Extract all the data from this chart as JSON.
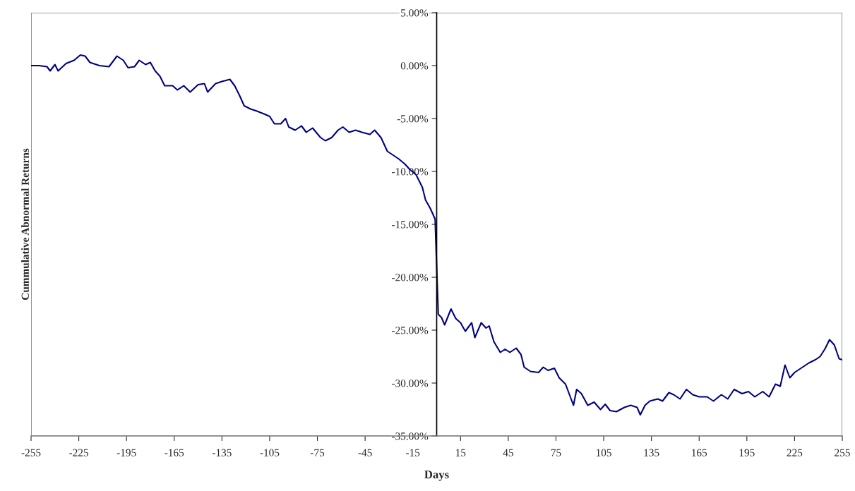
{
  "chart_data": {
    "type": "line",
    "xlabel": "Days",
    "ylabel": "Cummulative Abnormal Returns",
    "xlim": [
      -255,
      255
    ],
    "xticks": [
      -255,
      -225,
      -195,
      -165,
      -135,
      -105,
      -75,
      -45,
      -15,
      15,
      45,
      75,
      105,
      135,
      165,
      195,
      225,
      255
    ],
    "ylim": [
      -35,
      5
    ],
    "yticks": [
      {
        "value": 5,
        "label": "5.00%"
      },
      {
        "value": 0,
        "label": "0.00%"
      },
      {
        "value": -5,
        "label": "-5.00%"
      },
      {
        "value": -10,
        "label": "-10.00%"
      },
      {
        "value": -15,
        "label": "-15.00%"
      },
      {
        "value": -20,
        "label": "-20.00%"
      },
      {
        "value": -25,
        "label": "-25.00%"
      },
      {
        "value": -30,
        "label": "-30.00%"
      },
      {
        "value": -35,
        "label": "-35.00%"
      }
    ],
    "grid": false,
    "legend": false,
    "marker": "none",
    "line_style": "solid",
    "series": [
      {
        "color": "#000080",
        "x": [
          -255,
          -250,
          -245,
          -243,
          -240,
          -238,
          -233,
          -228,
          -224,
          -221,
          -218,
          -212,
          -206,
          -201,
          -197,
          -194,
          -190,
          -187,
          -183,
          -180,
          -177,
          -174,
          -171,
          -166,
          -163,
          -159,
          -155,
          -150,
          -146,
          -144,
          -139,
          -135,
          -130,
          -127,
          -124,
          -121,
          -117,
          -113,
          -108,
          -105,
          -102,
          -98,
          -95,
          -93,
          -89,
          -85,
          -82,
          -78,
          -73,
          -70,
          -66,
          -62,
          -59,
          -55,
          -51,
          -47,
          -42,
          -39,
          -35,
          -31,
          -27,
          -24,
          -20,
          -17,
          -13,
          -9,
          -7,
          -4,
          -1,
          1,
          3,
          5,
          9,
          12,
          15,
          18,
          22,
          24,
          28,
          31,
          33,
          36,
          40,
          43,
          46,
          50,
          53,
          55,
          59,
          64,
          67,
          70,
          74,
          77,
          81,
          84,
          86,
          88,
          91,
          95,
          99,
          103,
          106,
          109,
          113,
          118,
          122,
          126,
          128,
          131,
          134,
          139,
          142,
          146,
          149,
          153,
          157,
          161,
          165,
          170,
          174,
          179,
          183,
          187,
          192,
          196,
          200,
          205,
          209,
          213,
          216,
          219,
          222,
          225,
          229,
          234,
          238,
          241,
          244,
          247,
          250,
          253,
          255
        ],
        "values": [
          0.0,
          0.0,
          -0.1,
          -0.5,
          0.1,
          -0.5,
          0.2,
          0.5,
          1.0,
          0.9,
          0.3,
          0.0,
          -0.1,
          0.9,
          0.5,
          -0.2,
          -0.1,
          0.5,
          0.1,
          0.3,
          -0.5,
          -1.0,
          -1.9,
          -1.9,
          -2.3,
          -1.9,
          -2.5,
          -1.8,
          -1.7,
          -2.5,
          -1.7,
          -1.5,
          -1.3,
          -1.9,
          -2.8,
          -3.8,
          -4.1,
          -4.3,
          -4.6,
          -4.8,
          -5.5,
          -5.5,
          -5.0,
          -5.8,
          -6.1,
          -5.7,
          -6.3,
          -5.9,
          -6.8,
          -7.1,
          -6.8,
          -6.1,
          -5.8,
          -6.3,
          -6.1,
          -6.3,
          -6.5,
          -6.1,
          -6.8,
          -8.1,
          -8.5,
          -8.8,
          -9.3,
          -9.8,
          -10.3,
          -11.5,
          -12.7,
          -13.5,
          -14.5,
          -23.5,
          -23.8,
          -24.5,
          -23.0,
          -23.9,
          -24.3,
          -25.1,
          -24.3,
          -25.7,
          -24.3,
          -24.8,
          -24.6,
          -26.1,
          -27.1,
          -26.8,
          -27.1,
          -26.7,
          -27.3,
          -28.5,
          -28.9,
          -29.0,
          -28.5,
          -28.8,
          -28.6,
          -29.5,
          -30.1,
          -31.3,
          -32.1,
          -30.6,
          -31.0,
          -32.1,
          -31.8,
          -32.5,
          -32.0,
          -32.6,
          -32.7,
          -32.3,
          -32.1,
          -32.3,
          -33.0,
          -32.1,
          -31.7,
          -31.5,
          -31.7,
          -30.9,
          -31.1,
          -31.5,
          -30.6,
          -31.1,
          -31.3,
          -31.3,
          -31.7,
          -31.1,
          -31.5,
          -30.6,
          -31.0,
          -30.8,
          -31.3,
          -30.8,
          -31.3,
          -30.1,
          -30.3,
          -28.3,
          -29.5,
          -29.0,
          -28.6,
          -28.1,
          -27.8,
          -27.5,
          -26.8,
          -25.9,
          -26.4,
          -27.7,
          -27.8
        ]
      }
    ]
  }
}
